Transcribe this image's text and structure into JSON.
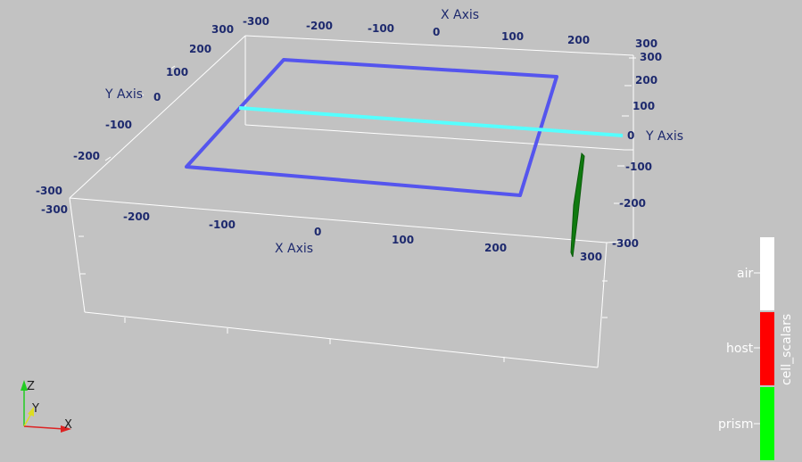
{
  "scene": {
    "background_color": "#c2c2c2",
    "axes_grid": {
      "x_axis_title": "X Axis",
      "y_axis_title": "Y Axis",
      "top_x_ticks": [
        "-300",
        "-200",
        "-100",
        "0",
        "100",
        "200",
        "300"
      ],
      "top_left_y_ticks": [
        "300",
        "200",
        "100",
        "0",
        "-100",
        "-200",
        "-300"
      ],
      "right_y_ticks": [
        "300",
        "200",
        "100",
        "0",
        "-100",
        "-200",
        "-300"
      ],
      "bottom_x_ticks": [
        "-300",
        "-200",
        "-100",
        "0",
        "100",
        "200",
        "300"
      ]
    },
    "objects": {
      "blue_rectangle_color": "#5555ee",
      "cyan_line_color": "#55ffff",
      "green_prism_color": "#0f7a0f"
    }
  },
  "legend": {
    "title": "cell_scalars",
    "entries": [
      {
        "label": "air",
        "color": "#ffffff"
      },
      {
        "label": "host",
        "color": "#ff0000"
      },
      {
        "label": "prism",
        "color": "#00ff00"
      }
    ]
  },
  "orientation_triad": {
    "z_label": "Z",
    "y_label": "Y",
    "x_label": "X",
    "z_color": "#22cc22",
    "y_color": "#dddd22",
    "x_color": "#dd2222"
  }
}
